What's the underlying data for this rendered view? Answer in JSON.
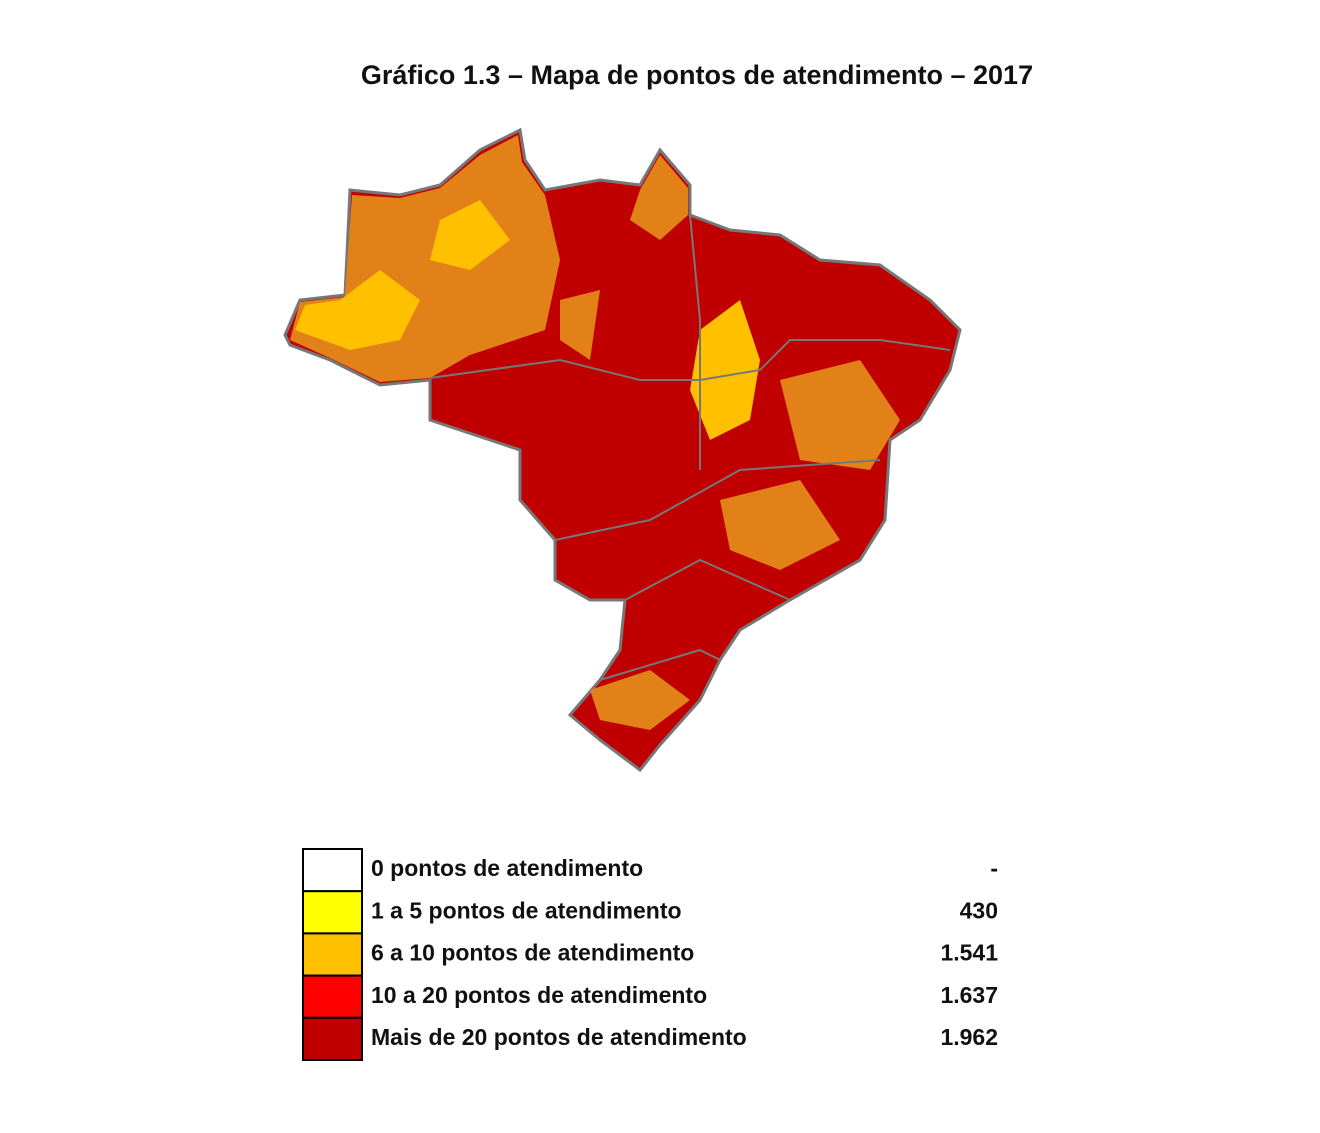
{
  "title": "Gráfico 1.3 – Mapa de pontos de atendimento – 2017",
  "legend": [
    {
      "label": "0 pontos de atendimento",
      "count": "-",
      "color": "#ffffff"
    },
    {
      "label": "1 a 5 pontos de atendimento",
      "count": "430",
      "color": "#ffff00"
    },
    {
      "label": "6 a 10 pontos de atendimento",
      "count": "1.541",
      "color": "#ffc000"
    },
    {
      "label": "10 a 20 pontos de atendimento",
      "count": "1.637",
      "color": "#ff0000"
    },
    {
      "label": "Mais de 20 pontos de atendimento",
      "count": "1.962",
      "color": "#c00000"
    }
  ]
}
